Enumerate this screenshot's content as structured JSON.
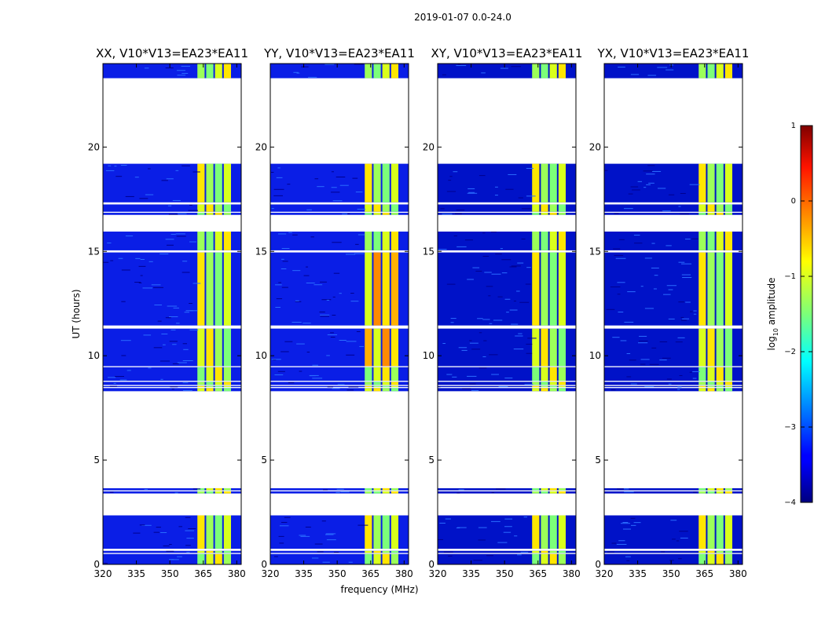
{
  "suptitle": "2019-01-07 0.0-24.0",
  "chart_data": {
    "type": "heatmap",
    "xlabel": "frequency (MHz)",
    "ylabel": "UT (hours)",
    "xlim": [
      320,
      382
    ],
    "ylim": [
      0,
      24
    ],
    "xticks": [
      320,
      335,
      350,
      365,
      380
    ],
    "yticks": [
      0,
      5,
      10,
      15,
      20
    ],
    "colorbar": {
      "label_prefix": "log",
      "label_sub": "10",
      "label_suffix": " amplitude",
      "range": [
        -4,
        1
      ],
      "ticks": [
        1,
        0,
        -1,
        -2,
        -3,
        -4
      ],
      "colormap": "jet"
    },
    "panels": [
      {
        "title": "XX, V10*V13=EA23*EA11"
      },
      {
        "title": "YY, V10*V13=EA23*EA11"
      },
      {
        "title": "XY, V10*V13=EA23*EA11"
      },
      {
        "title": "YX, V10*V13=EA23*EA11"
      }
    ],
    "data_time_ranges_hours": [
      [
        0.0,
        0.5
      ],
      [
        0.55,
        0.65
      ],
      [
        0.75,
        2.35
      ],
      [
        3.4,
        3.5
      ],
      [
        3.55,
        3.65
      ],
      [
        8.3,
        8.45
      ],
      [
        8.5,
        8.55
      ],
      [
        8.6,
        8.75
      ],
      [
        8.8,
        9.45
      ],
      [
        9.5,
        11.3
      ],
      [
        11.45,
        14.95
      ],
      [
        15.05,
        15.95
      ],
      [
        16.75,
        16.85
      ],
      [
        16.9,
        17.25
      ],
      [
        17.35,
        19.2
      ],
      [
        23.3,
        24.0
      ]
    ],
    "bright_band_mhz": [
      362,
      382
    ]
  }
}
